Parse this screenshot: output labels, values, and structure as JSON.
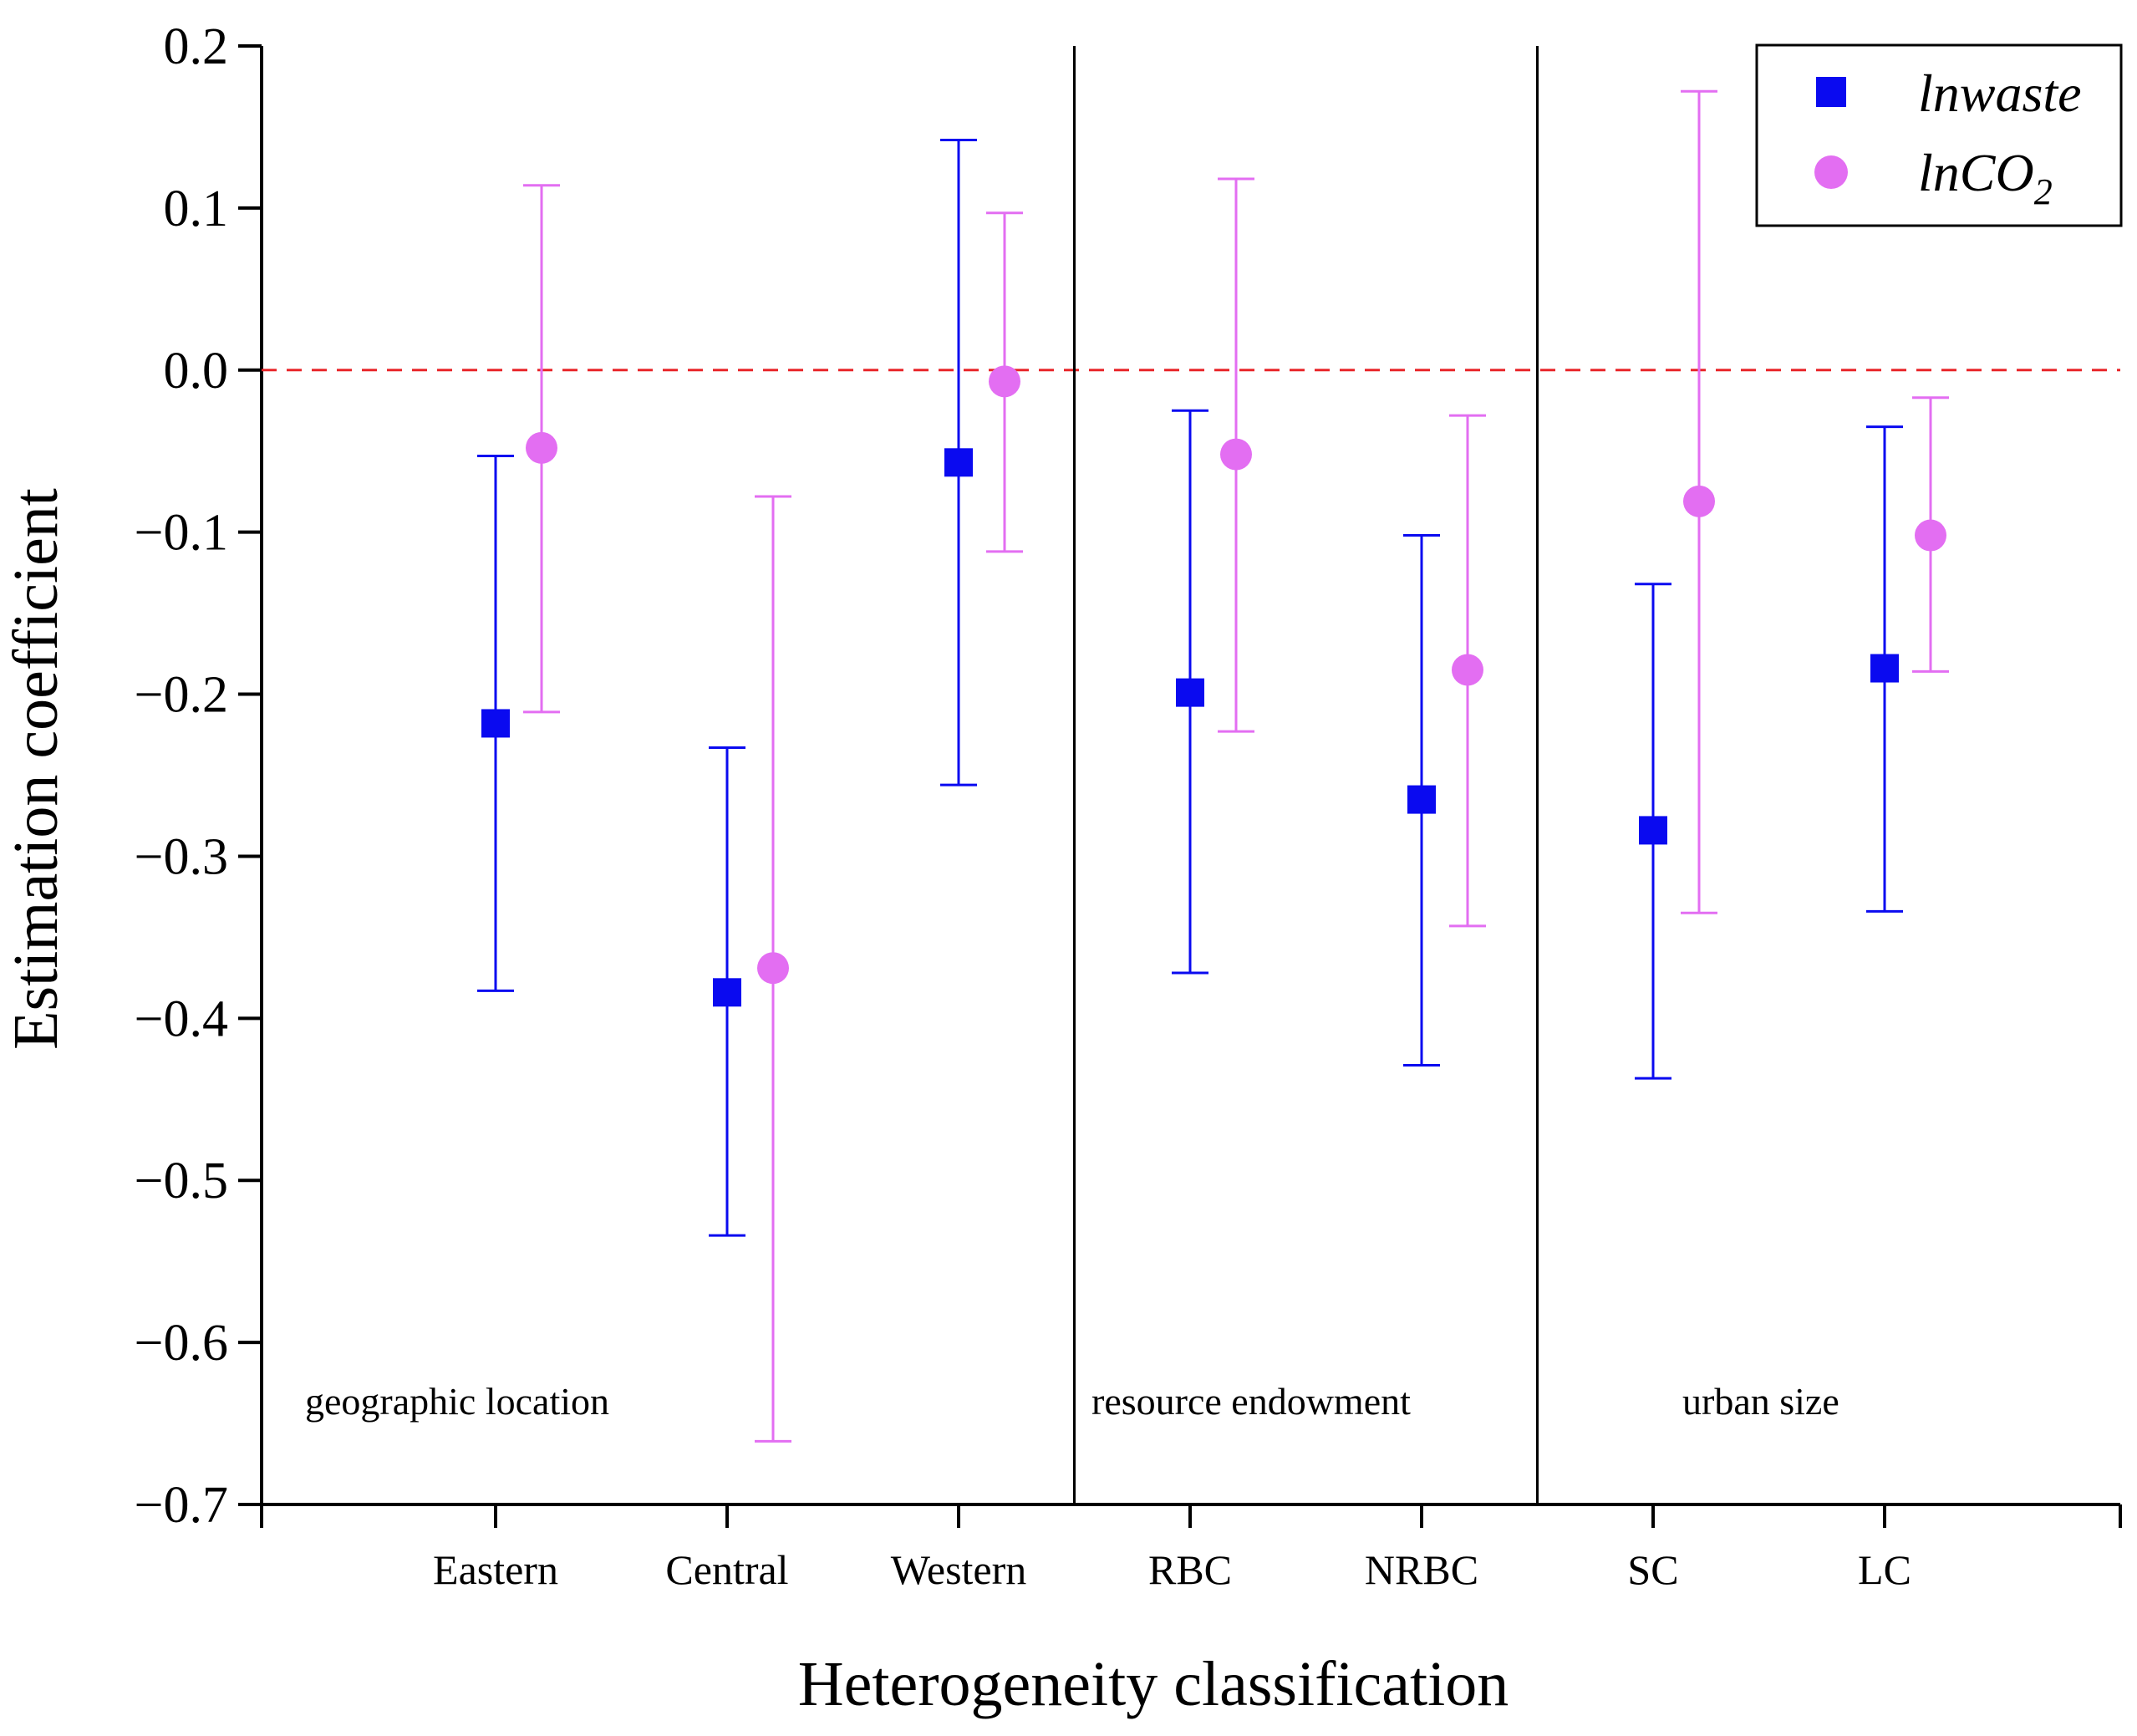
{
  "chart_data": {
    "type": "scatter",
    "title": "",
    "xlabel": "Heterogeneity classification",
    "ylabel": "Estimation coefficient",
    "ylim": [
      -0.7,
      0.2
    ],
    "yticks": [
      0.2,
      0.1,
      0.0,
      -0.1,
      -0.2,
      -0.3,
      -0.4,
      -0.5,
      -0.6,
      -0.7
    ],
    "ytick_labels": [
      "0.2",
      "0.1",
      "0.0",
      "−0.1",
      "−0.2",
      "−0.3",
      "−0.4",
      "−0.5",
      "−0.6",
      "−0.7"
    ],
    "categories": [
      "Eastern",
      "Central",
      "Western",
      "RBC",
      "NRBC",
      "SC",
      "LC"
    ],
    "reference_line": {
      "y": 0.0,
      "style": "dashed",
      "color": "#e8262a"
    },
    "group_dividers_after": [
      2,
      4
    ],
    "groups": [
      {
        "label": "geographic location",
        "categories": [
          "Eastern",
          "Central",
          "Western"
        ]
      },
      {
        "label": "resource endowment",
        "categories": [
          "RBC",
          "NRBC"
        ]
      },
      {
        "label": "urban size",
        "categories": [
          "SC",
          "LC"
        ]
      }
    ],
    "legend_position": "top-right",
    "series": [
      {
        "name": "lnwaste",
        "marker": "square",
        "color": "#0a0af0",
        "values": [
          -0.218,
          -0.384,
          -0.057,
          -0.199,
          -0.265,
          -0.284,
          -0.184
        ],
        "lower": [
          -0.383,
          -0.534,
          -0.256,
          -0.372,
          -0.429,
          -0.437,
          -0.334
        ],
        "upper": [
          -0.053,
          -0.233,
          0.142,
          -0.025,
          -0.102,
          -0.132,
          -0.035
        ]
      },
      {
        "name": "lnCO2",
        "marker": "circle",
        "color": "#e36ef2",
        "values": [
          -0.048,
          -0.369,
          -0.007,
          -0.052,
          -0.185,
          -0.081,
          -0.102
        ],
        "lower": [
          -0.211,
          -0.661,
          -0.112,
          -0.223,
          -0.343,
          -0.335,
          -0.186
        ],
        "upper": [
          0.114,
          -0.078,
          0.097,
          0.118,
          -0.028,
          0.172,
          -0.017
        ]
      }
    ]
  },
  "legend": {
    "lnwaste_label": "lnwaste",
    "lnco2_main": "lnCO",
    "lnco2_sub": "2"
  }
}
